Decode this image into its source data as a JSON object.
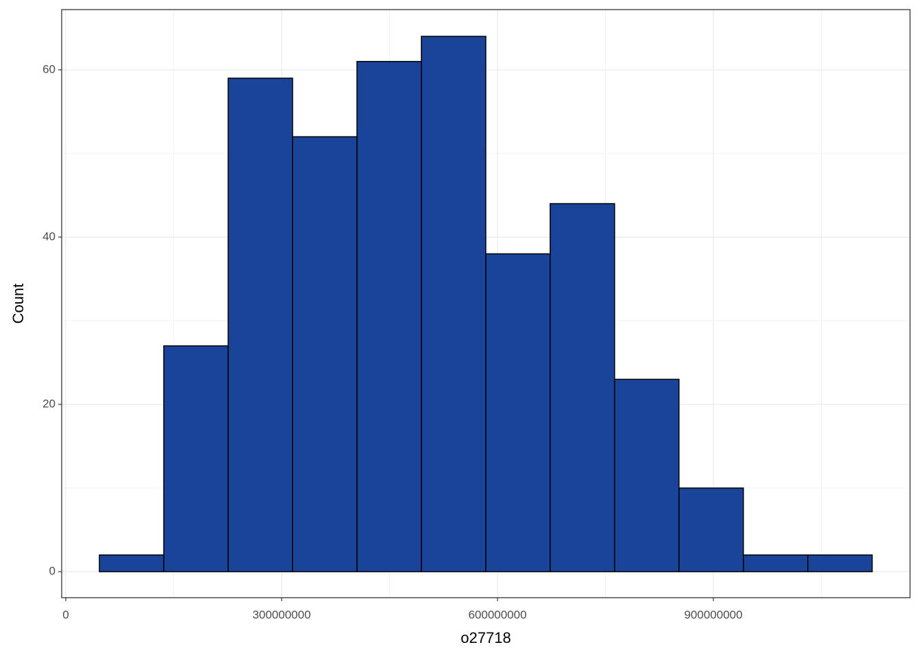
{
  "chart_data": {
    "type": "histogram",
    "x_label": "o27718",
    "y_label": "Count",
    "bins": [
      46700000,
      136200000,
      225700000,
      315200000,
      404700000,
      494200000,
      583700000,
      673200000,
      762700000,
      852200000,
      941700000,
      1031200000,
      1120700000
    ],
    "values": [
      2,
      27,
      59,
      52,
      61,
      64,
      38,
      44,
      23,
      10,
      2,
      2
    ],
    "color": "#1a4499",
    "edgecolor": "#000000",
    "xlim": [
      -5700000,
      1173300000
    ],
    "ylim": [
      -3.11,
      67.2
    ],
    "xticks": [
      0,
      300000000,
      600000000,
      900000000
    ],
    "yticks": [
      0,
      20,
      40,
      60
    ],
    "grid": true
  }
}
